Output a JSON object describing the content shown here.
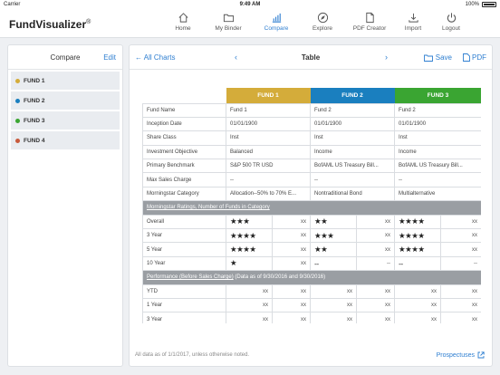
{
  "status": {
    "carrier": "Carrier",
    "time": "9:49 AM",
    "battery": "100%"
  },
  "app": {
    "brand_bold": "Fund",
    "brand_rest": "Visualizer",
    "brand_mark": "®"
  },
  "nav": [
    {
      "label": "Home",
      "icon": "home-icon"
    },
    {
      "label": "My Binder",
      "icon": "folder-icon"
    },
    {
      "label": "Compare",
      "icon": "bar-chart-icon",
      "active": true
    },
    {
      "label": "Explore",
      "icon": "compass-icon"
    },
    {
      "label": "PDF Creator",
      "icon": "document-icon"
    },
    {
      "label": "Import",
      "icon": "import-icon"
    },
    {
      "label": "Logout",
      "icon": "power-icon"
    }
  ],
  "sidebar": {
    "title": "Compare",
    "edit": "Edit",
    "funds": [
      {
        "label": "FUND 1",
        "color": "#d4ac3a"
      },
      {
        "label": "FUND 2",
        "color": "#1a7fbf"
      },
      {
        "label": "FUND 3",
        "color": "#3aa532"
      },
      {
        "label": "FUND 4",
        "color": "#c85a3c"
      }
    ]
  },
  "main": {
    "back": "All Charts",
    "prev": "‹",
    "title": "Table",
    "next": "›",
    "save": "Save",
    "pdf": "PDF",
    "footnote": "All data as of 1/1/2017, unless otherwise noted.",
    "prospectuses": "Prospectuses"
  },
  "table": {
    "funds": [
      {
        "label": "FUND 1",
        "color": "#d4ac3a"
      },
      {
        "label": "FUND 2",
        "color": "#1a7fbf"
      },
      {
        "label": "FUND 3",
        "color": "#3aa532"
      }
    ],
    "info_rows": [
      {
        "label": "Fund Name",
        "v": [
          "Fund 1",
          "Fund 2",
          "Fund 2"
        ]
      },
      {
        "label": "Inception Date",
        "v": [
          "01/01/1900",
          "01/01/1900",
          "01/01/1900"
        ]
      },
      {
        "label": "Share Class",
        "v": [
          "Inst",
          "Inst",
          "Inst"
        ]
      },
      {
        "label": "Investment Objective",
        "v": [
          "Balanced",
          "Income",
          "Income"
        ]
      },
      {
        "label": "Primary Benchmark",
        "v": [
          "S&P 500 TR USD",
          "BofAML US Treasury Bill...",
          "BofAML US Treasury Bill..."
        ]
      },
      {
        "label": "Max Sales Charge",
        "v": [
          "--",
          "--",
          "--"
        ]
      },
      {
        "label": "Morningstar Category",
        "v": [
          "Allocation--50% to 70% E...",
          "Nontraditional Bond",
          "Multialternative"
        ]
      }
    ],
    "ratings_header": "Morningstar Ratings, Number of Funds in Category",
    "ratings_rows": [
      {
        "label": "Overall",
        "cells": [
          {
            "stars": 3,
            "count": "xx"
          },
          {
            "stars": 2,
            "count": "xx"
          },
          {
            "stars": 4,
            "count": "xx"
          }
        ]
      },
      {
        "label": "3 Year",
        "cells": [
          {
            "stars": 4,
            "count": "xx"
          },
          {
            "stars": 3,
            "count": "xx"
          },
          {
            "stars": 4,
            "count": "xx"
          }
        ]
      },
      {
        "label": "5 Year",
        "cells": [
          {
            "stars": 4,
            "count": "xx"
          },
          {
            "stars": 2,
            "count": "xx"
          },
          {
            "stars": 4,
            "count": "xx"
          }
        ]
      },
      {
        "label": "10 Year",
        "cells": [
          {
            "stars": 1,
            "count": "xx"
          },
          {
            "stars": 0,
            "count": "--",
            "dash": "--"
          },
          {
            "stars": 0,
            "count": "--",
            "dash": "--"
          }
        ]
      }
    ],
    "perf_header": "Performance (Before Sales Charge)",
    "perf_note": "(Data as of 9/30/2016 and 9/30/2016)",
    "perf_rows": [
      {
        "label": "YTD",
        "v": [
          "xx",
          "xx",
          "xx",
          "xx",
          "xx",
          "xx"
        ]
      },
      {
        "label": "1 Year",
        "v": [
          "xx",
          "xx",
          "xx",
          "xx",
          "xx",
          "xx"
        ]
      },
      {
        "label": "3 Year",
        "v": [
          "xx",
          "xx",
          "xx",
          "xx",
          "xx",
          "xx"
        ]
      }
    ]
  }
}
